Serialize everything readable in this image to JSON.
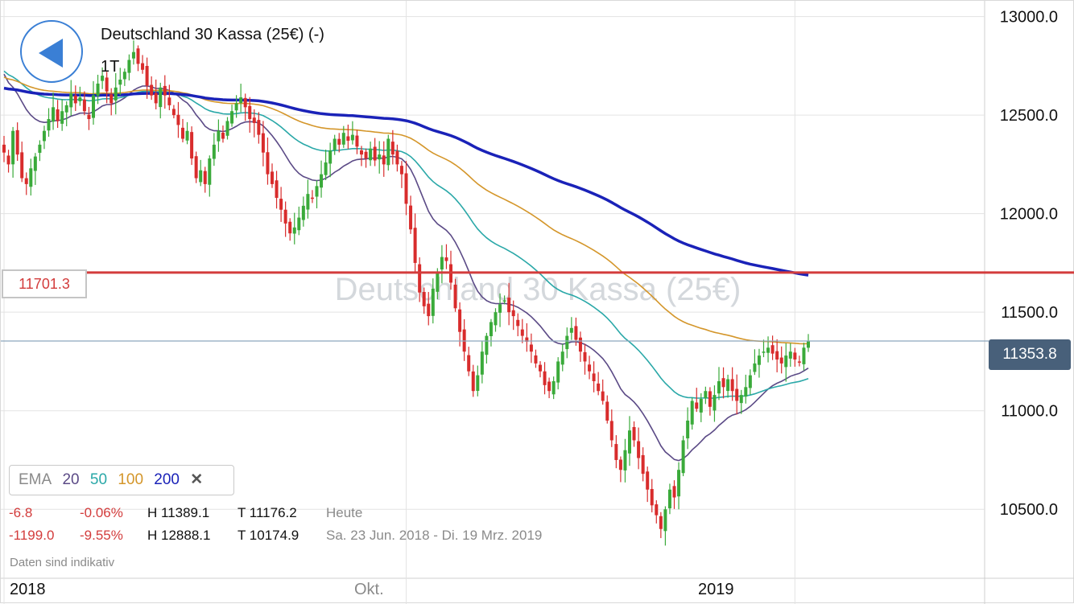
{
  "header": {
    "title": "Deutschland 30 Kassa (25€) (-)",
    "timeframe": "1T",
    "watermark": "Deutschland 30 Kassa (25€)"
  },
  "price_tag": "11353.8",
  "level_tag": "11701.3",
  "legend": {
    "label": "EMA",
    "periods": [
      {
        "text": "20",
        "color": "#5b4a86"
      },
      {
        "text": "50",
        "color": "#2aa8a8"
      },
      {
        "text": "100",
        "color": "#d4962a"
      },
      {
        "text": "200",
        "color": "#1a22b8"
      }
    ],
    "close": "✕"
  },
  "stats": {
    "row1": {
      "change": "-6.8",
      "pct": "-0.06%",
      "high": "H 11389.1",
      "low": "T 11176.2",
      "period": "Heute"
    },
    "row2": {
      "change": "-1199.0",
      "pct": "-9.55%",
      "high": "H 12888.1",
      "low": "T 10174.9",
      "period": "Sa. 23 Jun. 2018 - Di. 19 Mrz. 2019"
    }
  },
  "disclaimer": "Daten sind indikativ",
  "colors": {
    "up": "#3aaa3a",
    "down": "#d82c2c",
    "level_line": "#d33c3c",
    "price_line": "#8ea6bd",
    "grid": "#e3e3e3"
  },
  "chart_data": {
    "type": "candlestick",
    "ylim": [
      10150,
      13080
    ],
    "yticks": [
      13000,
      12500,
      12000,
      11500,
      11000,
      10500
    ],
    "ytick_labels": [
      "13000.0",
      "12500.0",
      "12000.0",
      "11500.0",
      "11000.0",
      "10500.0"
    ],
    "x_labels": [
      {
        "text": "2018",
        "at": 0
      },
      {
        "text": "Okt.",
        "at": 90
      },
      {
        "text": "2019",
        "at": 177
      }
    ],
    "horizontal_level": 11701.3,
    "last_price": 11353.8,
    "closes": [
      12310,
      12250,
      12420,
      12300,
      12180,
      12150,
      12230,
      12290,
      12350,
      12420,
      12480,
      12540,
      12470,
      12520,
      12550,
      12610,
      12560,
      12590,
      12520,
      12480,
      12600,
      12660,
      12700,
      12620,
      12560,
      12640,
      12680,
      12720,
      12780,
      12820,
      12760,
      12730,
      12650,
      12600,
      12560,
      12640,
      12600,
      12550,
      12500,
      12450,
      12380,
      12420,
      12280,
      12180,
      12220,
      12150,
      12280,
      12350,
      12420,
      12380,
      12470,
      12520,
      12560,
      12590,
      12540,
      12480,
      12460,
      12400,
      12310,
      12200,
      12150,
      12080,
      12020,
      11950,
      11900,
      11930,
      11980,
      12040,
      12100,
      12080,
      12140,
      12200,
      12260,
      12320,
      12380,
      12350,
      12410,
      12370,
      12400,
      12340,
      12300,
      12280,
      12330,
      12270,
      12300,
      12250,
      12380,
      12300,
      12250,
      12200,
      12050,
      11920,
      11750,
      11600,
      11530,
      11480,
      11620,
      11700,
      11780,
      11760,
      11650,
      11520,
      11400,
      11300,
      11200,
      11100,
      11180,
      11300,
      11380,
      11450,
      11500,
      11540,
      11560,
      11500,
      11480,
      11430,
      11380,
      11350,
      11300,
      11240,
      11200,
      11130,
      11100,
      11150,
      11250,
      11300,
      11380,
      11420,
      11360,
      11300,
      11250,
      11200,
      11150,
      11100,
      11050,
      10950,
      10850,
      10750,
      10700,
      10800,
      10900,
      10850,
      10760,
      10680,
      10600,
      10520,
      10470,
      10400,
      10500,
      10600,
      10560,
      10700,
      10850,
      10950,
      11050,
      11010,
      11060,
      11100,
      11020,
      11080,
      11150,
      11120,
      11160,
      11100,
      11050,
      11080,
      11120,
      11180,
      11240,
      11280,
      11300,
      11320,
      11290,
      11260,
      11240,
      11280,
      11300,
      11260,
      11250,
      11320,
      11353.8
    ]
  }
}
